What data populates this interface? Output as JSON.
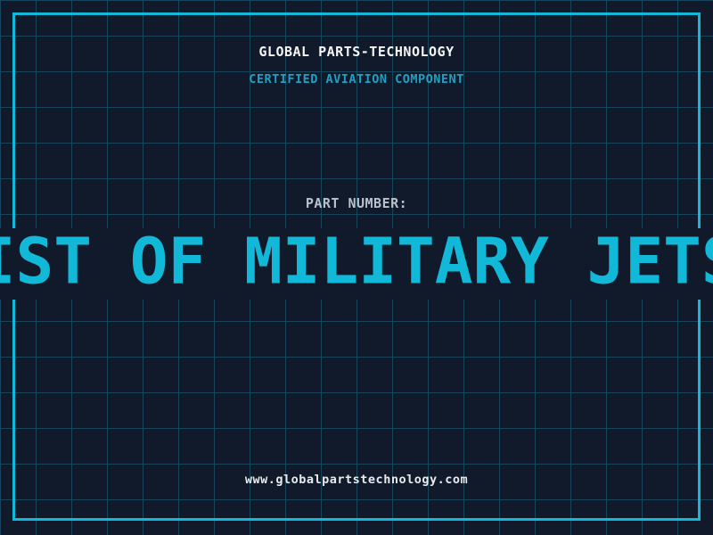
{
  "colors": {
    "bg": "#101a2b",
    "grid": "#17455c",
    "frame": "#12b8d8",
    "bigtext": "#12b8d8",
    "title": "#f5f5f5",
    "subtitle": "#1fa0c2",
    "label": "#b9c1cb",
    "footer": "#e8eaec"
  },
  "header": {
    "title": "GLOBAL PARTS-TECHNOLOGY",
    "subtitle": "CERTIFIED AVIATION COMPONENT"
  },
  "part": {
    "label": "PART NUMBER:",
    "value": "LIST OF MILITARY JETS"
  },
  "footer": {
    "website": "www.globalpartstechnology.com"
  }
}
